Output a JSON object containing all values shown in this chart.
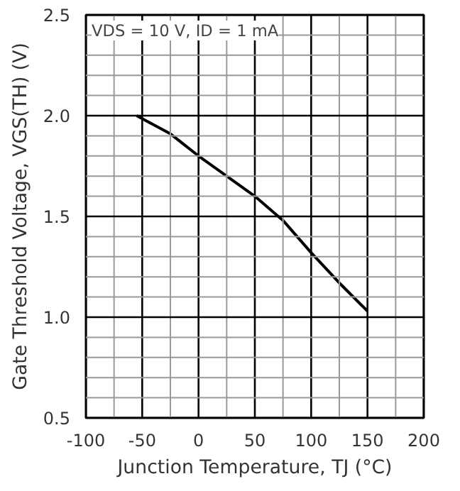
{
  "chart_data": {
    "type": "line",
    "xlabel": "Junction Temperature, TJ (°C)",
    "ylabel": "Gate Threshold Voltage, VGS(TH) (V)",
    "annotations": [
      "VDS = 10 V, ID = 1 mA"
    ],
    "x": [
      -55,
      -25,
      0,
      25,
      50,
      75,
      100,
      125,
      150
    ],
    "series": [
      {
        "color": "#000000",
        "values": [
          2.0,
          1.91,
          1.8,
          1.7,
          1.6,
          1.48,
          1.32,
          1.17,
          1.03
        ]
      }
    ],
    "xlim": [
      -100,
      200
    ],
    "ylim": [
      0.5,
      2.5
    ],
    "xticks": [
      -100,
      {
        "value": -75,
        "label": null
      },
      -50,
      {
        "value": -25,
        "label": null
      },
      0,
      {
        "value": 25,
        "label": null
      },
      50,
      {
        "value": 75,
        "label": null
      },
      100,
      {
        "value": 125,
        "label": null
      },
      150,
      {
        "value": 175,
        "label": null
      },
      200
    ],
    "yticks": [
      0.5,
      {
        "value": 0.6,
        "label": null
      },
      {
        "value": 0.7,
        "label": null
      },
      {
        "value": 0.8,
        "label": null
      },
      {
        "value": 0.9,
        "label": null
      },
      {
        "value": 1,
        "label": "1.0"
      },
      {
        "value": 1.1,
        "label": null
      },
      {
        "value": 1.2,
        "label": null
      },
      {
        "value": 1.3,
        "label": null
      },
      {
        "value": 1.4,
        "label": null
      },
      1.5,
      {
        "value": 1.6,
        "label": null
      },
      {
        "value": 1.7,
        "label": null
      },
      {
        "value": 1.8,
        "label": null
      },
      {
        "value": 1.9,
        "label": null
      },
      {
        "value": 2,
        "label": "2.0"
      },
      {
        "value": 2.1,
        "label": null
      },
      {
        "value": 2.2,
        "label": null
      },
      {
        "value": 2.3,
        "label": null
      },
      {
        "value": 2.4,
        "label": null
      },
      2.5
    ],
    "grid": true,
    "marker": "none",
    "line_style": "solid"
  }
}
